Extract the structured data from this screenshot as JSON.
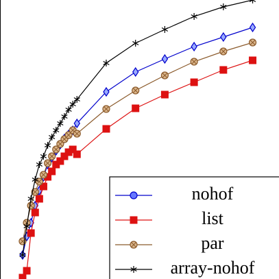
{
  "chart_data": {
    "type": "line",
    "x": [
      1,
      2,
      3,
      4,
      5,
      6,
      7,
      8,
      9,
      10,
      11,
      12,
      13,
      14,
      21,
      28,
      35,
      42,
      49,
      56
    ],
    "xlim": [
      -4.4,
      62.3
    ],
    "ylim": [
      0,
      407
    ],
    "legend": "lower right",
    "series": [
      {
        "name": "nohof",
        "color": "#0000cc",
        "marker": "diamond",
        "values": [
          35,
          62,
          82,
          107,
          129,
          149,
          167,
          177,
          187,
          196,
          205,
          211,
          217,
          227,
          273,
          302,
          321,
          339,
          353,
          367
        ]
      },
      {
        "name": "list",
        "color": "#dd1111",
        "marker": "square",
        "values": [
          2,
          12,
          67,
          97,
          117,
          135,
          149,
          157,
          167,
          172,
          179,
          185,
          189,
          182,
          219,
          249,
          269,
          287,
          305,
          319
        ]
      },
      {
        "name": "par",
        "color": "#8b5a2b",
        "marker": "otimes",
        "values": [
          55,
          82,
          107,
          127,
          142,
          152,
          169,
          179,
          189,
          197,
          204,
          210,
          217,
          212,
          248,
          275,
          297,
          317,
          332,
          345
        ]
      },
      {
        "name": "array-nohof",
        "color": "#000000",
        "marker": "star",
        "values": [
          35,
          77,
          117,
          145,
          167,
          179,
          195,
          207,
          217,
          227,
          237,
          247,
          255,
          262,
          315,
          344,
          364,
          383,
          397,
          407
        ]
      }
    ]
  }
}
